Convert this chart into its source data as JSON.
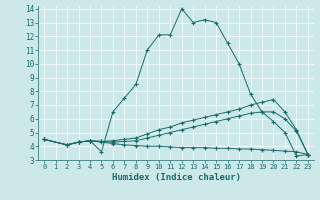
{
  "xlabel": "Humidex (Indice chaleur)",
  "xlim": [
    -0.5,
    23.5
  ],
  "ylim": [
    3,
    14.2
  ],
  "xticks": [
    0,
    1,
    2,
    3,
    4,
    5,
    6,
    7,
    8,
    9,
    10,
    11,
    12,
    13,
    14,
    15,
    16,
    17,
    18,
    19,
    20,
    21,
    22,
    23
  ],
  "yticks": [
    3,
    4,
    5,
    6,
    7,
    8,
    9,
    10,
    11,
    12,
    13,
    14
  ],
  "bg_color": "#cce8e8",
  "line_color": "#1a6b6b",
  "grid_color": "#ffffff",
  "series": [
    {
      "x": [
        0,
        2,
        3,
        4,
        5,
        6,
        7,
        8,
        9,
        10,
        11,
        12,
        13,
        14,
        15,
        16,
        17,
        18,
        19,
        20,
        21,
        22,
        23
      ],
      "y": [
        4.5,
        4.1,
        4.3,
        4.4,
        3.6,
        6.5,
        7.5,
        8.5,
        11.0,
        12.1,
        12.1,
        14.0,
        13.0,
        13.2,
        13.0,
        11.5,
        10.0,
        7.8,
        6.5,
        5.8,
        5.0,
        3.3,
        3.4
      ]
    },
    {
      "x": [
        0,
        2,
        3,
        4,
        5,
        6,
        7,
        8,
        9,
        10,
        11,
        12,
        13,
        14,
        15,
        16,
        17,
        18,
        19,
        20,
        21,
        22,
        23
      ],
      "y": [
        4.5,
        4.1,
        4.3,
        4.4,
        4.35,
        4.4,
        4.5,
        4.6,
        4.9,
        5.2,
        5.4,
        5.7,
        5.9,
        6.1,
        6.3,
        6.5,
        6.7,
        7.0,
        7.2,
        7.4,
        6.5,
        5.2,
        3.4
      ]
    },
    {
      "x": [
        0,
        2,
        3,
        4,
        5,
        6,
        7,
        8,
        9,
        10,
        11,
        12,
        13,
        14,
        15,
        16,
        17,
        18,
        19,
        20,
        21,
        22,
        23
      ],
      "y": [
        4.5,
        4.1,
        4.3,
        4.4,
        4.35,
        4.3,
        4.35,
        4.4,
        4.6,
        4.8,
        5.0,
        5.2,
        5.4,
        5.6,
        5.8,
        6.0,
        6.2,
        6.4,
        6.5,
        6.5,
        6.0,
        5.1,
        3.4
      ]
    },
    {
      "x": [
        0,
        2,
        3,
        4,
        5,
        6,
        7,
        8,
        9,
        10,
        11,
        12,
        13,
        14,
        15,
        16,
        17,
        18,
        19,
        20,
        21,
        22,
        23
      ],
      "y": [
        4.5,
        4.1,
        4.3,
        4.4,
        4.3,
        4.2,
        4.1,
        4.05,
        4.0,
        4.0,
        3.95,
        3.9,
        3.9,
        3.9,
        3.85,
        3.85,
        3.8,
        3.8,
        3.75,
        3.7,
        3.65,
        3.6,
        3.4
      ]
    }
  ]
}
